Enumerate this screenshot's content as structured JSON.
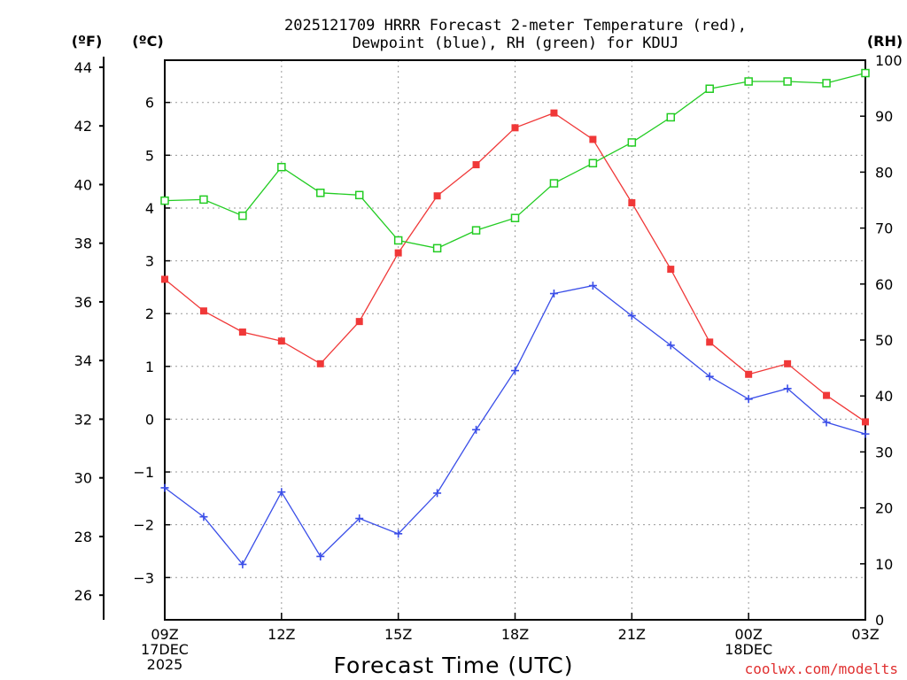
{
  "chart_data": {
    "type": "line",
    "title_line1": "2025121709 HRRR Forecast 2-meter Temperature (red),",
    "title_line2": "Dewpoint (blue), RH (green) for KDUJ",
    "xlabel": "Forecast Time (UTC)",
    "credit": "coolwx.com/modelts",
    "unit_f": "(ºF)",
    "unit_c": "(ºC)",
    "unit_rh": "(RH)",
    "x_hours": [
      9,
      10,
      11,
      12,
      13,
      14,
      15,
      16,
      17,
      18,
      19,
      20,
      21,
      22,
      23,
      24,
      25,
      26,
      27
    ],
    "x_ticks": [
      {
        "hour": 9,
        "lines": [
          "09Z",
          "17DEC",
          "2025"
        ]
      },
      {
        "hour": 12,
        "lines": [
          "12Z"
        ]
      },
      {
        "hour": 15,
        "lines": [
          "15Z"
        ]
      },
      {
        "hour": 18,
        "lines": [
          "18Z"
        ]
      },
      {
        "hour": 21,
        "lines": [
          "21Z"
        ]
      },
      {
        "hour": 24,
        "lines": [
          "00Z",
          "18DEC"
        ]
      },
      {
        "hour": 27,
        "lines": [
          "03Z"
        ]
      }
    ],
    "c_range": [
      -3.8,
      6.8
    ],
    "c_ticks": [
      "-3",
      "-2",
      "-1",
      "0",
      "1",
      "2",
      "3",
      "4",
      "5",
      "6"
    ],
    "f_ticks": [
      "26",
      "28",
      "30",
      "32",
      "34",
      "36",
      "38",
      "40",
      "42",
      "44"
    ],
    "rh_range": [
      0,
      100
    ],
    "rh_ticks": [
      "0",
      "10",
      "20",
      "30",
      "40",
      "50",
      "60",
      "70",
      "80",
      "90",
      "100"
    ],
    "series": [
      {
        "name": "Temperature",
        "unit": "C",
        "color": "#f03838",
        "marker": "filled-square",
        "values": [
          2.65,
          2.05,
          1.65,
          1.48,
          1.05,
          1.85,
          3.15,
          4.23,
          4.82,
          5.52,
          5.8,
          5.3,
          4.1,
          2.84,
          1.46,
          0.85,
          1.05,
          0.45,
          -0.05
        ]
      },
      {
        "name": "Dewpoint",
        "unit": "C",
        "color": "#3a4ee8",
        "marker": "plus",
        "values": [
          -1.3,
          -1.85,
          -2.75,
          -1.38,
          -2.6,
          -1.88,
          -2.17,
          -1.4,
          -0.2,
          0.92,
          2.38,
          2.53,
          1.96,
          1.4,
          0.81,
          0.38,
          0.58,
          -0.06,
          -0.28
        ]
      },
      {
        "name": "RH",
        "unit": "%",
        "color": "#22cc22",
        "marker": "open-square",
        "values": [
          74.9,
          75.1,
          72.2,
          80.9,
          76.3,
          75.9,
          67.8,
          66.4,
          69.6,
          71.8,
          78.0,
          81.6,
          85.3,
          89.8,
          94.9,
          96.2,
          96.2,
          95.9,
          97.7
        ]
      }
    ]
  }
}
